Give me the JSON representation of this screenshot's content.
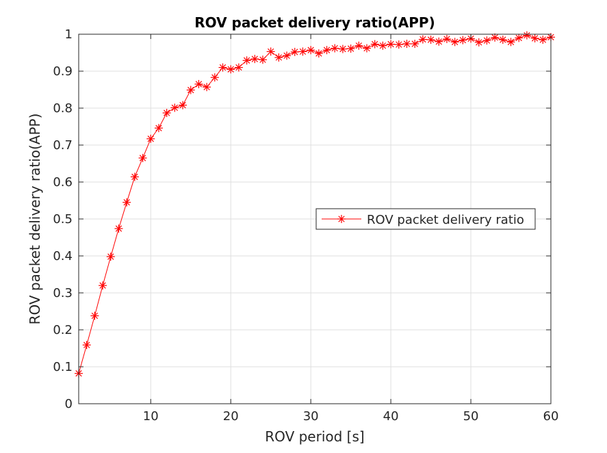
{
  "chart_data": {
    "type": "line",
    "title": "ROV packet delivery ratio(APP)",
    "xlabel": "ROV period [s]",
    "ylabel": "ROV packet delivery ratio(APP)",
    "xlim": [
      1,
      60
    ],
    "ylim": [
      0,
      1
    ],
    "xticks": [
      10,
      20,
      30,
      40,
      50,
      60
    ],
    "yticks": [
      0,
      0.1,
      0.2,
      0.3,
      0.4,
      0.5,
      0.6,
      0.7,
      0.8,
      0.9,
      1
    ],
    "xtick_labels": [
      "10",
      "20",
      "30",
      "40",
      "50",
      "60"
    ],
    "ytick_labels": [
      "0",
      "0.1",
      "0.2",
      "0.3",
      "0.4",
      "0.5",
      "0.6",
      "0.7",
      "0.8",
      "0.9",
      "1"
    ],
    "grid": true,
    "legend_position": "right",
    "series_color": "#ff0000",
    "marker": "asterisk",
    "series": [
      {
        "name": "ROV packet delivery ratio",
        "x": [
          1,
          2,
          3,
          4,
          5,
          6,
          7,
          8,
          9,
          10,
          11,
          12,
          13,
          14,
          15,
          16,
          17,
          18,
          19,
          20,
          21,
          22,
          23,
          24,
          25,
          26,
          27,
          28,
          29,
          30,
          31,
          32,
          33,
          34,
          35,
          36,
          37,
          38,
          39,
          40,
          41,
          42,
          43,
          44,
          45,
          46,
          47,
          48,
          49,
          50,
          51,
          52,
          53,
          54,
          55,
          56,
          57,
          58,
          59,
          60
        ],
        "values": [
          0.082,
          0.159,
          0.238,
          0.32,
          0.398,
          0.474,
          0.545,
          0.614,
          0.665,
          0.717,
          0.746,
          0.787,
          0.801,
          0.808,
          0.849,
          0.865,
          0.857,
          0.883,
          0.91,
          0.905,
          0.91,
          0.929,
          0.933,
          0.931,
          0.953,
          0.937,
          0.942,
          0.952,
          0.953,
          0.957,
          0.948,
          0.957,
          0.962,
          0.96,
          0.961,
          0.969,
          0.962,
          0.973,
          0.969,
          0.973,
          0.972,
          0.974,
          0.974,
          0.986,
          0.985,
          0.98,
          0.987,
          0.979,
          0.984,
          0.988,
          0.978,
          0.983,
          0.991,
          0.985,
          0.979,
          0.99,
          0.997,
          0.989,
          0.985,
          0.992
        ]
      }
    ]
  }
}
